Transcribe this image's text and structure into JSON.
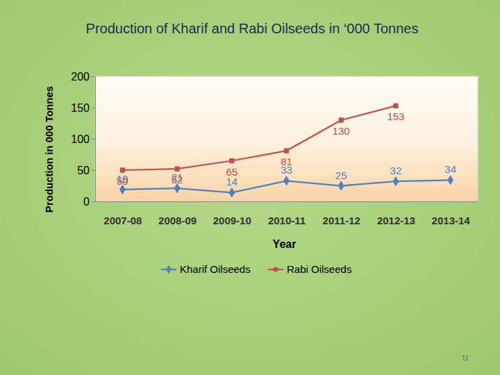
{
  "chart_data": {
    "type": "line",
    "title": "Production of Kharif and Rabi Oilseeds in ‘000 Tonnes",
    "x_label": "Year",
    "y_label": "Production  in 000 Tonnes",
    "categories": [
      "2007-08",
      "2008-09",
      "2009-10",
      "2010-11",
      "2011-12",
      "2012-13",
      "2013-14"
    ],
    "series": [
      {
        "name": "Kharif Oilseeds",
        "color": "#4f81bd",
        "marker": "diamond",
        "values": [
          19,
          21,
          14,
          33,
          25,
          32,
          34
        ]
      },
      {
        "name": "Rabi Oilseeds",
        "color": "#c0504d",
        "marker": "square",
        "values": [
          50,
          52,
          65,
          81,
          130,
          153,
          null
        ]
      }
    ],
    "ylim": [
      0,
      200
    ],
    "yticks": [
      0,
      50,
      100,
      150,
      200
    ],
    "grid": false,
    "legend": "bottom",
    "data_labels": true,
    "annotations": [
      "11"
    ]
  }
}
